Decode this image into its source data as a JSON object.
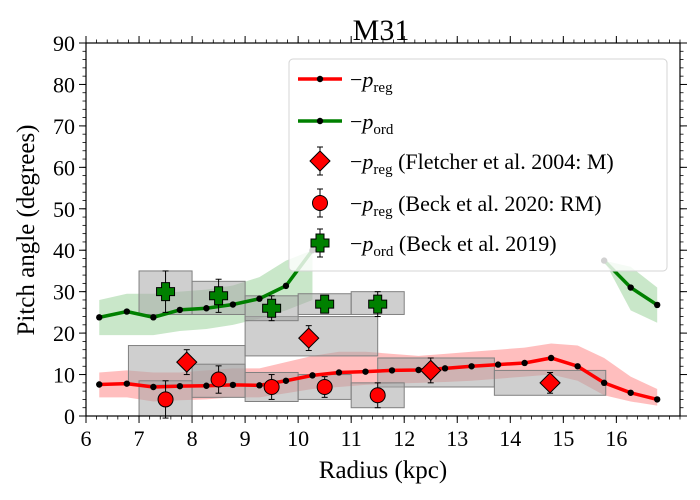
{
  "chart_data": {
    "type": "line",
    "title": "M31",
    "xlabel": "Radius (kpc)",
    "ylabel": "Pitch angle (degrees)",
    "xlim": [
      6,
      17.2
    ],
    "ylim": [
      0,
      90
    ],
    "xticks": [
      6,
      7,
      8,
      9,
      10,
      11,
      12,
      13,
      14,
      15,
      16
    ],
    "yticks": [
      0,
      10,
      20,
      30,
      40,
      50,
      60,
      70,
      80,
      90
    ],
    "grid": false,
    "legend_position": "top-right",
    "legend": [
      {
        "prefix": "−",
        "var": "p",
        "sub": "reg",
        "suffix": ""
      },
      {
        "prefix": "−",
        "var": "p",
        "sub": "ord",
        "suffix": ""
      },
      {
        "prefix": "−",
        "var": "p",
        "sub": "reg",
        "suffix": " (Fletcher et al. 2004: M)"
      },
      {
        "prefix": "−",
        "var": "p",
        "sub": "reg",
        "suffix": " (Beck et al. 2020: RM)"
      },
      {
        "prefix": "−",
        "var": "p",
        "sub": "ord",
        "suffix": " (Beck et al. 2019)"
      }
    ],
    "series": [
      {
        "key": "preg",
        "color": "#ff0000",
        "band_color": "#ffb3b3",
        "x": [
          6.25,
          6.77,
          7.27,
          7.77,
          8.27,
          8.77,
          9.27,
          9.77,
          10.27,
          10.77,
          11.27,
          11.77,
          12.27,
          12.77,
          13.27,
          13.77,
          14.27,
          14.77,
          15.27,
          15.77,
          16.27,
          16.77
        ],
        "y": [
          7.6,
          7.8,
          7.0,
          7.2,
          7.3,
          7.5,
          7.4,
          8.5,
          9.8,
          10.5,
          10.7,
          11.0,
          11.1,
          11.5,
          12.0,
          12.4,
          12.8,
          14.0,
          12.0,
          8.0,
          5.6,
          4.0
        ],
        "band_low": [
          4.5,
          4.5,
          3.5,
          3.8,
          4.0,
          4.5,
          4.5,
          5.5,
          6.5,
          7.0,
          7.5,
          7.8,
          8.0,
          8.2,
          8.5,
          9.0,
          9.5,
          10.0,
          8.5,
          5.0,
          3.5,
          2.5
        ],
        "band_high": [
          10.5,
          11.0,
          10.5,
          10.5,
          11.0,
          11.5,
          11.5,
          13.0,
          14.5,
          15.5,
          15.5,
          15.0,
          14.5,
          15.0,
          15.5,
          16.0,
          16.5,
          17.5,
          17.0,
          14.0,
          9.5,
          6.5
        ]
      },
      {
        "key": "pord",
        "color": "#008000",
        "band_color": "#bfe3bf",
        "segments": [
          {
            "x": [
              6.25,
              6.77,
              7.27,
              7.77,
              8.27,
              8.77,
              9.27,
              9.77,
              10.27
            ],
            "y": [
              23.8,
              25.2,
              23.8,
              25.6,
              26.0,
              26.9,
              28.3,
              31.4,
              40.0
            ]
          },
          {
            "x": [
              15.77,
              16.27,
              16.77
            ],
            "y": [
              37.5,
              31.0,
              26.8
            ]
          }
        ],
        "band_segments": [
          {
            "x": [
              6.25,
              6.77,
              7.27,
              7.77,
              8.27,
              8.77,
              9.27,
              9.77,
              10.27
            ],
            "low": [
              19.5,
              19.5,
              19.5,
              20.5,
              21.0,
              22.0,
              23.5,
              25.5,
              28.0
            ],
            "high": [
              28.0,
              29.5,
              29.5,
              30.0,
              30.5,
              31.5,
              33.5,
              37.5,
              40.0
            ]
          },
          {
            "x": [
              15.77,
              16.27,
              16.77
            ],
            "low": [
              37.5,
              25.5,
              22.5
            ],
            "high": [
              37.5,
              36.0,
              31.0
            ]
          }
        ]
      }
    ],
    "points": [
      {
        "key": "fletcher",
        "marker": "diamond",
        "color": "#ff0000",
        "x": [
          7.9,
          10.2,
          12.5,
          14.75
        ],
        "y": [
          13.0,
          18.8,
          11.0,
          8.0
        ],
        "yerr": [
          3.0,
          3.0,
          3.0,
          2.5
        ],
        "xbox": [
          [
            6.8,
            9.0
          ],
          [
            9.0,
            11.5
          ],
          [
            11.5,
            13.7
          ],
          [
            13.7,
            15.8
          ]
        ],
        "ybox": [
          [
            7.5,
            17.0
          ],
          [
            14.5,
            24.0
          ],
          [
            7.0,
            14.0
          ],
          [
            5.0,
            11.0
          ]
        ]
      },
      {
        "key": "beck2020",
        "marker": "circle",
        "color": "#ff0000",
        "x": [
          7.5,
          8.5,
          9.5,
          10.5,
          11.5
        ],
        "y": [
          4.0,
          8.8,
          7.0,
          7.0,
          5.0
        ],
        "yerr": [
          4.5,
          3.3,
          3.0,
          2.5,
          3.0
        ],
        "xbox": [
          [
            7.0,
            8.0
          ],
          [
            8.0,
            9.0
          ],
          [
            9.0,
            10.0
          ],
          [
            10.0,
            11.0
          ],
          [
            11.0,
            12.0
          ]
        ],
        "ybox": [
          [
            0.0,
            8.5
          ],
          [
            4.5,
            12.5
          ],
          [
            3.5,
            10.5
          ],
          [
            4.0,
            10.0
          ],
          [
            2.0,
            8.0
          ]
        ]
      },
      {
        "key": "beck2019",
        "marker": "plus",
        "color": "#008000",
        "x": [
          7.5,
          8.5,
          9.5,
          10.5,
          11.5
        ],
        "y": [
          30.0,
          29.0,
          26.0,
          27.0,
          27.0
        ],
        "yerr": [
          5.0,
          4.0,
          3.0,
          2.0,
          3.0
        ],
        "xbox": [
          [
            7.0,
            8.0
          ],
          [
            8.0,
            9.0
          ],
          [
            9.0,
            10.0
          ],
          [
            10.0,
            11.0
          ],
          [
            11.0,
            12.0
          ]
        ],
        "ybox": [
          [
            24.5,
            35.0
          ],
          [
            24.5,
            32.5
          ],
          [
            23.0,
            29.0
          ],
          [
            24.5,
            29.5
          ],
          [
            24.5,
            30.0
          ]
        ]
      }
    ]
  }
}
